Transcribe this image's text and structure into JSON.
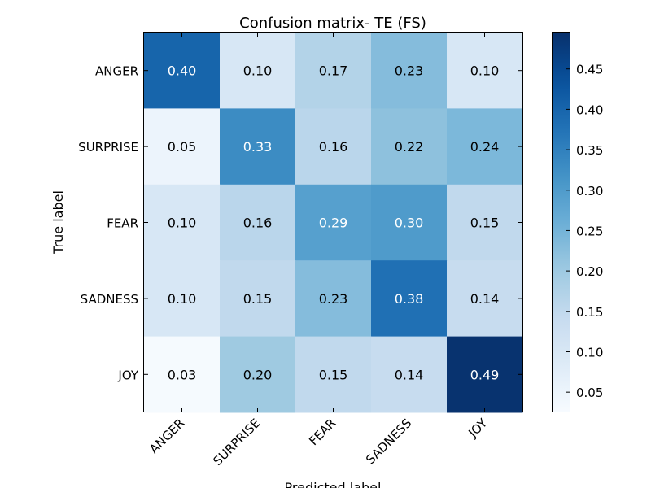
{
  "chart_data": {
    "type": "heatmap",
    "title": "Confusion matrix- TE (FS)",
    "xlabel": "Predicted label",
    "ylabel": "True label",
    "x_categories": [
      "ANGER",
      "SURPRISE",
      "FEAR",
      "SADNESS",
      "JOY"
    ],
    "y_categories": [
      "ANGER",
      "SURPRISE",
      "FEAR",
      "SADNESS",
      "JOY"
    ],
    "values": [
      [
        0.4,
        0.1,
        0.17,
        0.23,
        0.1
      ],
      [
        0.05,
        0.33,
        0.16,
        0.22,
        0.24
      ],
      [
        0.1,
        0.16,
        0.29,
        0.3,
        0.15
      ],
      [
        0.1,
        0.15,
        0.23,
        0.38,
        0.14
      ],
      [
        0.03,
        0.2,
        0.15,
        0.14,
        0.49
      ]
    ],
    "cell_labels": [
      [
        "0.40",
        "0.10",
        "0.17",
        "0.23",
        "0.10"
      ],
      [
        "0.05",
        "0.33",
        "0.16",
        "0.22",
        "0.24"
      ],
      [
        "0.10",
        "0.16",
        "0.29",
        "0.30",
        "0.15"
      ],
      [
        "0.10",
        "0.15",
        "0.23",
        "0.38",
        "0.14"
      ],
      [
        "0.03",
        "0.20",
        "0.15",
        "0.14",
        "0.49"
      ]
    ],
    "colormap": "Blues",
    "vmin": 0.025,
    "vmax": 0.495,
    "colorbar_ticks": [
      0.05,
      0.1,
      0.15,
      0.2,
      0.25,
      0.3,
      0.35,
      0.4,
      0.45
    ],
    "colorbar_tick_labels": [
      "0.05",
      "0.10",
      "0.15",
      "0.20",
      "0.25",
      "0.30",
      "0.35",
      "0.40",
      "0.45"
    ],
    "grid": false
  }
}
